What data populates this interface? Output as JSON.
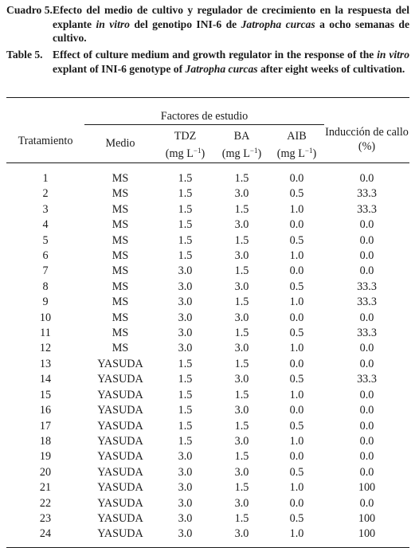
{
  "caption_es": {
    "label": "Cuadro 5.",
    "text_1": "Efecto del medio de cultivo y regulador de crecimiento en la respuesta del explante ",
    "italic_1": "in vitro",
    "text_2": " del genotipo INI-6 de ",
    "italic_2": "Jatropha curcas",
    "text_3": " a ocho semanas de cultivo."
  },
  "caption_en": {
    "label": "Table 5.",
    "text_1": "Effect of culture medium and growth regulator in the response of the ",
    "italic_1": "in vitro",
    "text_2": " explant of INI-6 genotype of ",
    "italic_2": "Jatropha curcas",
    "text_3": " after eight weeks of cultivation."
  },
  "table": {
    "header": {
      "tratamiento": "Tratamiento",
      "factores": "Factores de estudio",
      "medio": "Medio",
      "tdz": "TDZ",
      "ba": "BA",
      "aib": "AIB",
      "unit_base": "(mg L",
      "unit_exp": "−1",
      "unit_close": ")",
      "induccion": "Inducción de callo",
      "induccion_unit": "(%)"
    },
    "rows": [
      {
        "trat": "1",
        "medio": "MS",
        "tdz": "1.5",
        "ba": "1.5",
        "aib": "0.0",
        "ind": "0.0"
      },
      {
        "trat": "2",
        "medio": "MS",
        "tdz": "1.5",
        "ba": "3.0",
        "aib": "0.5",
        "ind": "33.3"
      },
      {
        "trat": "3",
        "medio": "MS",
        "tdz": "1.5",
        "ba": "1.5",
        "aib": "1.0",
        "ind": "33.3"
      },
      {
        "trat": "4",
        "medio": "MS",
        "tdz": "1.5",
        "ba": "3.0",
        "aib": "0.0",
        "ind": "0.0"
      },
      {
        "trat": "5",
        "medio": "MS",
        "tdz": "1.5",
        "ba": "1.5",
        "aib": "0.5",
        "ind": "0.0"
      },
      {
        "trat": "6",
        "medio": "MS",
        "tdz": "1.5",
        "ba": "3.0",
        "aib": "1.0",
        "ind": "0.0"
      },
      {
        "trat": "7",
        "medio": "MS",
        "tdz": "3.0",
        "ba": "1.5",
        "aib": "0.0",
        "ind": "0.0"
      },
      {
        "trat": "8",
        "medio": "MS",
        "tdz": "3.0",
        "ba": "3.0",
        "aib": "0.5",
        "ind": "33.3"
      },
      {
        "trat": "9",
        "medio": "MS",
        "tdz": "3.0",
        "ba": "1.5",
        "aib": "1.0",
        "ind": "33.3"
      },
      {
        "trat": "10",
        "medio": "MS",
        "tdz": "3.0",
        "ba": "3.0",
        "aib": "0.0",
        "ind": "0.0"
      },
      {
        "trat": "11",
        "medio": "MS",
        "tdz": "3.0",
        "ba": "1.5",
        "aib": "0.5",
        "ind": "33.3"
      },
      {
        "trat": "12",
        "medio": "MS",
        "tdz": "3.0",
        "ba": "3.0",
        "aib": "1.0",
        "ind": "0.0"
      },
      {
        "trat": "13",
        "medio": "YASUDA",
        "tdz": "1.5",
        "ba": "1.5",
        "aib": "0.0",
        "ind": "0.0"
      },
      {
        "trat": "14",
        "medio": "YASUDA",
        "tdz": "1.5",
        "ba": "3.0",
        "aib": "0.5",
        "ind": "33.3"
      },
      {
        "trat": "15",
        "medio": "YASUDA",
        "tdz": "1.5",
        "ba": "1.5",
        "aib": "1.0",
        "ind": "0.0"
      },
      {
        "trat": "16",
        "medio": "YASUDA",
        "tdz": "1.5",
        "ba": "3.0",
        "aib": "0.0",
        "ind": "0.0"
      },
      {
        "trat": "17",
        "medio": "YASUDA",
        "tdz": "1.5",
        "ba": "1.5",
        "aib": "0.5",
        "ind": "0.0"
      },
      {
        "trat": "18",
        "medio": "YASUDA",
        "tdz": "1.5",
        "ba": "3.0",
        "aib": "1.0",
        "ind": "0.0"
      },
      {
        "trat": "19",
        "medio": "YASUDA",
        "tdz": "3.0",
        "ba": "1.5",
        "aib": "0.0",
        "ind": "0.0"
      },
      {
        "trat": "20",
        "medio": "YASUDA",
        "tdz": "3.0",
        "ba": "3.0",
        "aib": "0.5",
        "ind": "0.0"
      },
      {
        "trat": "21",
        "medio": "YASUDA",
        "tdz": "3.0",
        "ba": "1.5",
        "aib": "1.0",
        "ind": "100"
      },
      {
        "trat": "22",
        "medio": "YASUDA",
        "tdz": "3.0",
        "ba": "3.0",
        "aib": "0.0",
        "ind": "0.0"
      },
      {
        "trat": "23",
        "medio": "YASUDA",
        "tdz": "3.0",
        "ba": "1.5",
        "aib": "0.5",
        "ind": "100"
      },
      {
        "trat": "24",
        "medio": "YASUDA",
        "tdz": "3.0",
        "ba": "3.0",
        "aib": "1.0",
        "ind": "100"
      }
    ]
  }
}
